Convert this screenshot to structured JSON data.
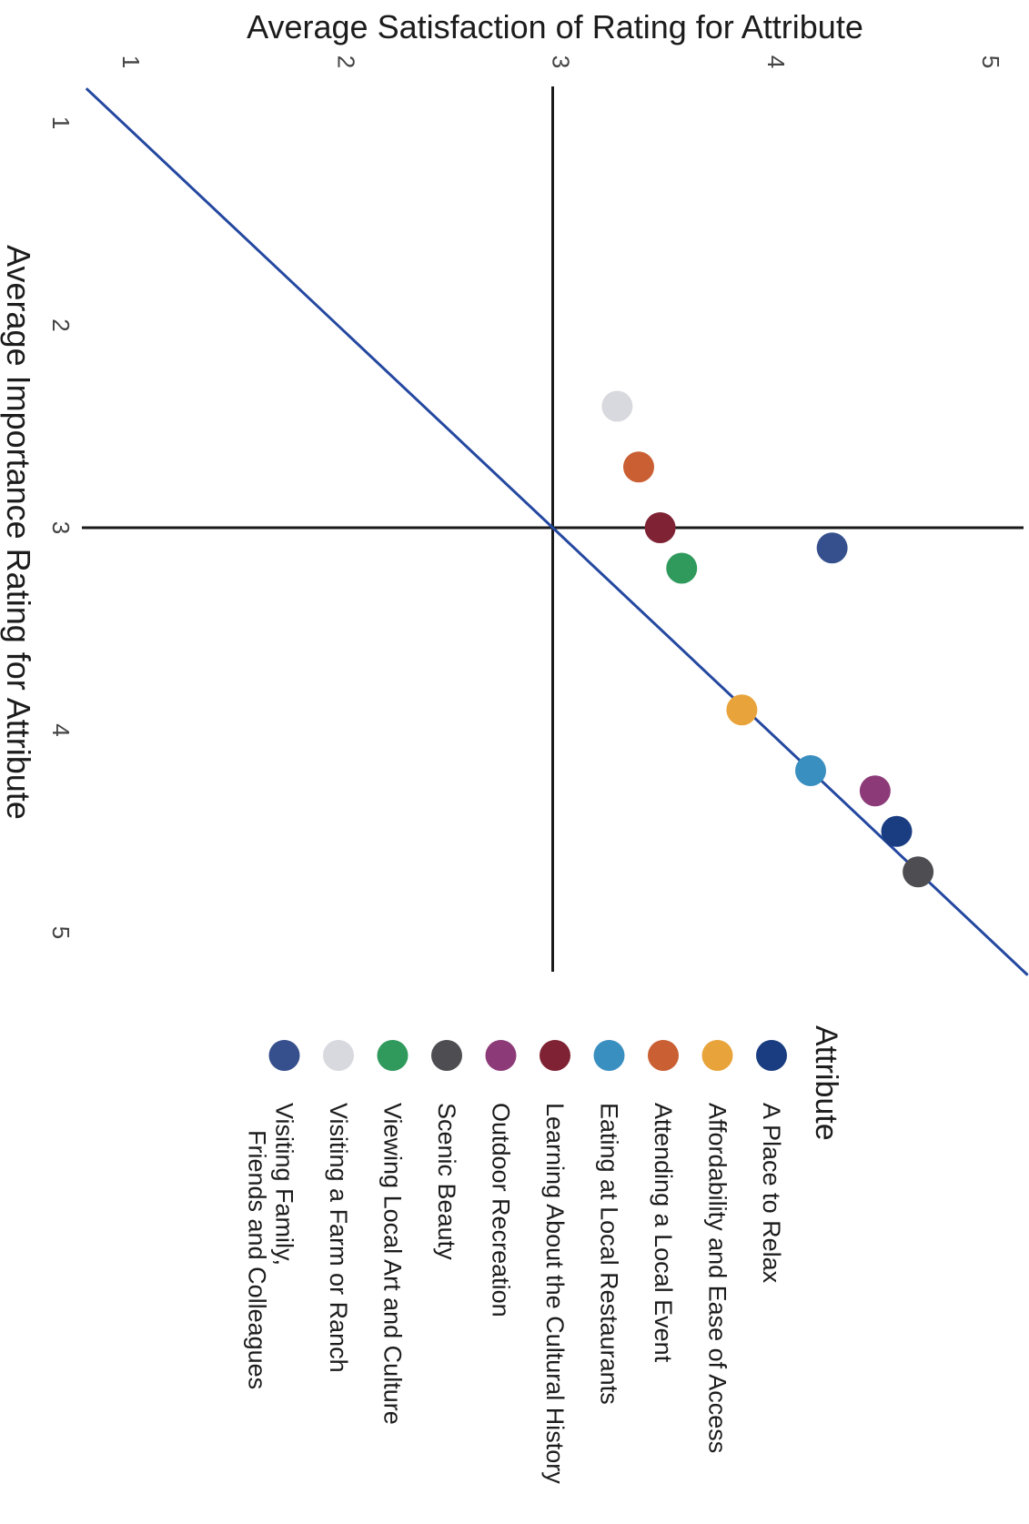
{
  "chart_data": {
    "type": "scatter",
    "title": "",
    "xlabel": "Average Satisfaction of Rating for Attribute",
    "ylabel": "Average Importance Rating for Attribute",
    "xlim": [
      1,
      5
    ],
    "ylim": [
      1,
      5
    ],
    "x_ticks": [
      "1",
      "2",
      "3",
      "4",
      "5"
    ],
    "y_ticks": [
      "1",
      "2",
      "3",
      "4",
      "5"
    ],
    "reference_lines": {
      "vertical_at_x": 3,
      "horizontal_at_y": 3,
      "diagonal": "y = x"
    },
    "legend_title": "Attribute",
    "legend_position": "bottom",
    "series": [
      {
        "name": "A Place to Relax",
        "color": "#1a3d82",
        "x": 4.6,
        "y": 4.5
      },
      {
        "name": "Affordability and Ease of Access",
        "color": "#e8a43a",
        "x": 3.88,
        "y": 3.9
      },
      {
        "name": "Attending a Local Event",
        "color": "#c95f33",
        "x": 3.4,
        "y": 2.7
      },
      {
        "name": "Eating at Local Restaurants",
        "color": "#3a8fc1",
        "x": 4.2,
        "y": 4.2
      },
      {
        "name": "Learning About the Cultural History",
        "color": "#7f2233",
        "x": 3.5,
        "y": 3.0
      },
      {
        "name": "Outdoor Recreation",
        "color": "#8d3b78",
        "x": 4.5,
        "y": 4.3
      },
      {
        "name": "Scenic Beauty",
        "color": "#4d4d52",
        "x": 4.7,
        "y": 4.7
      },
      {
        "name": "Viewing Local Art and Culture",
        "color": "#2f9a5c",
        "x": 3.6,
        "y": 3.2
      },
      {
        "name": "Visiting a Farm or Ranch",
        "color": "#d8d9de",
        "x": 3.3,
        "y": 2.4
      },
      {
        "name": "Visiting Family,\nFriends and Colleagues",
        "color": "#36508e",
        "x": 4.3,
        "y": 3.1
      }
    ]
  },
  "colors": {
    "diagonal": "#2448a0",
    "axis": "#1a1a1a",
    "text": "#1c1c1c"
  }
}
